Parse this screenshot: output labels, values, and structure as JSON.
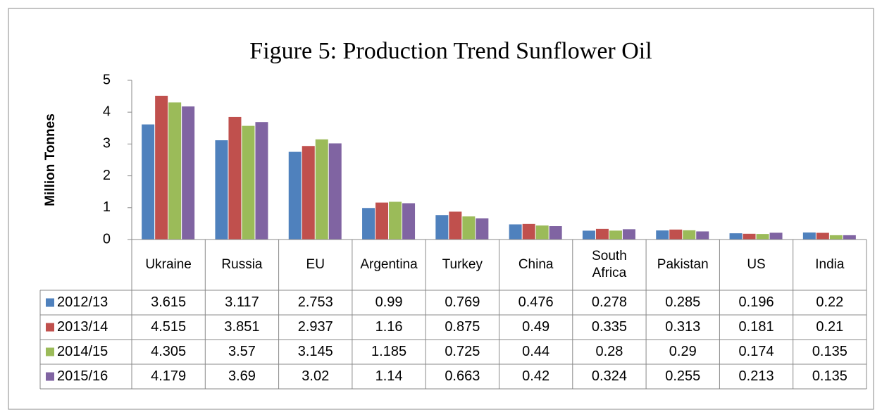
{
  "chart_data": {
    "type": "bar",
    "title": "Figure 5: Production Trend Sunflower Oil",
    "ylabel": "Million Tonnes",
    "categories": [
      "Ukraine",
      "Russia",
      "EU",
      "Argentina",
      "Turkey",
      "China",
      "South Africa",
      "Pakistan",
      "US",
      "India"
    ],
    "series": [
      {
        "name": "2012/13",
        "color": "#4f81bd",
        "values": [
          3.615,
          3.117,
          2.753,
          0.99,
          0.769,
          0.476,
          0.278,
          0.285,
          0.196,
          0.22
        ]
      },
      {
        "name": "2013/14",
        "color": "#c0504d",
        "values": [
          4.515,
          3.851,
          2.937,
          1.16,
          0.875,
          0.49,
          0.335,
          0.313,
          0.181,
          0.21
        ]
      },
      {
        "name": "2014/15",
        "color": "#9bbb59",
        "values": [
          4.305,
          3.57,
          3.145,
          1.185,
          0.725,
          0.44,
          0.28,
          0.29,
          0.174,
          0.135
        ]
      },
      {
        "name": "2015/16",
        "color": "#8064a2",
        "values": [
          4.179,
          3.69,
          3.02,
          1.14,
          0.663,
          0.42,
          0.324,
          0.255,
          0.213,
          0.135
        ]
      }
    ],
    "ylim": [
      0,
      5
    ],
    "yticks": [
      0,
      1,
      2,
      3,
      4,
      5
    ],
    "grid": false
  }
}
